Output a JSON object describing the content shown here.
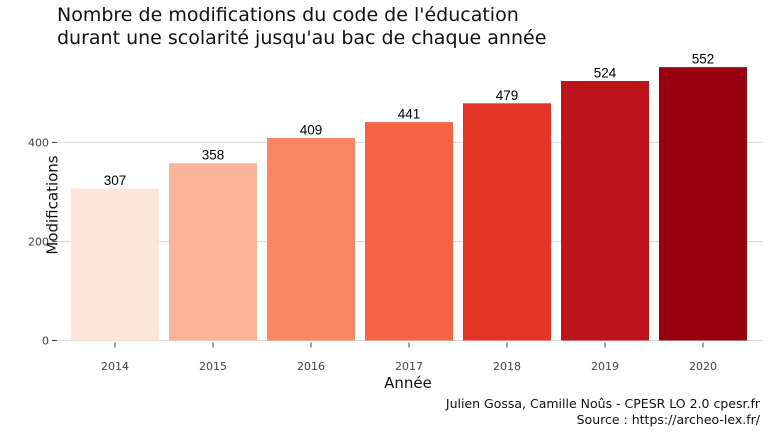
{
  "title_lines": [
    "Nombre de modifications du code de l'éducation",
    "durant une scolarité jusqu'au bac de chaque année"
  ],
  "caption_lines": [
    "Julien Gossa, Camille Noûs - CPESR LO 2.0 cpesr.fr",
    "Source : https://archeo-lex.fr/"
  ],
  "chart_data": {
    "type": "bar",
    "title": "Nombre de modifications du code de l'éducation durant une scolarité jusqu'au bac de chaque année",
    "xlabel": "Année",
    "ylabel": "Modifications",
    "categories": [
      "2014",
      "2015",
      "2016",
      "2017",
      "2018",
      "2019",
      "2020"
    ],
    "values": [
      307,
      358,
      409,
      441,
      479,
      524,
      552
    ],
    "data_labels": [
      "307",
      "358",
      "409",
      "441",
      "479",
      "524",
      "552"
    ],
    "bar_colors": [
      "#FEE5D9",
      "#FCB499",
      "#FB8664",
      "#F86244",
      "#E43427",
      "#BC141A",
      "#99000D"
    ],
    "yticks": [
      0,
      200,
      400
    ],
    "ytick_labels": [
      "0",
      "200",
      "400"
    ],
    "ylim": [
      0,
      580
    ],
    "grid": "horizontal",
    "legend": "none"
  }
}
